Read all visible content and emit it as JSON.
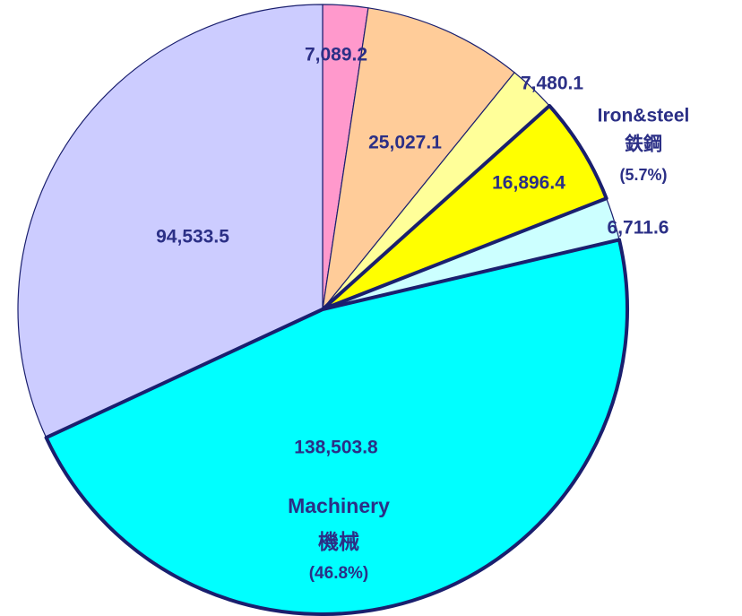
{
  "chart_data": {
    "type": "pie",
    "categories": [
      null,
      null,
      null,
      null,
      null,
      null,
      null
    ],
    "values": [
      7089.2,
      25027.1,
      7480.1,
      16896.4,
      6711.6,
      138503.8,
      94533.5
    ],
    "value_labels": [
      "7,089.2",
      "25,027.1",
      "7,480.1",
      "16,896.4",
      "6,711.6",
      "138,503.8",
      "94,533.5"
    ],
    "colors": [
      "#ff99cc",
      "#ffcc99",
      "#ffff99",
      "#ffff00",
      "#ccffff",
      "#00ffff",
      "#ccccff"
    ],
    "highlight": [
      false,
      false,
      false,
      true,
      false,
      true,
      false
    ],
    "annotations": [
      {
        "slice": 3,
        "lines": [
          "Iron&steel",
          "鉄鋼",
          "(5.7%)"
        ]
      },
      {
        "slice": 5,
        "lines": [
          "Machinery",
          "機械",
          "(46.8%)"
        ]
      }
    ]
  }
}
